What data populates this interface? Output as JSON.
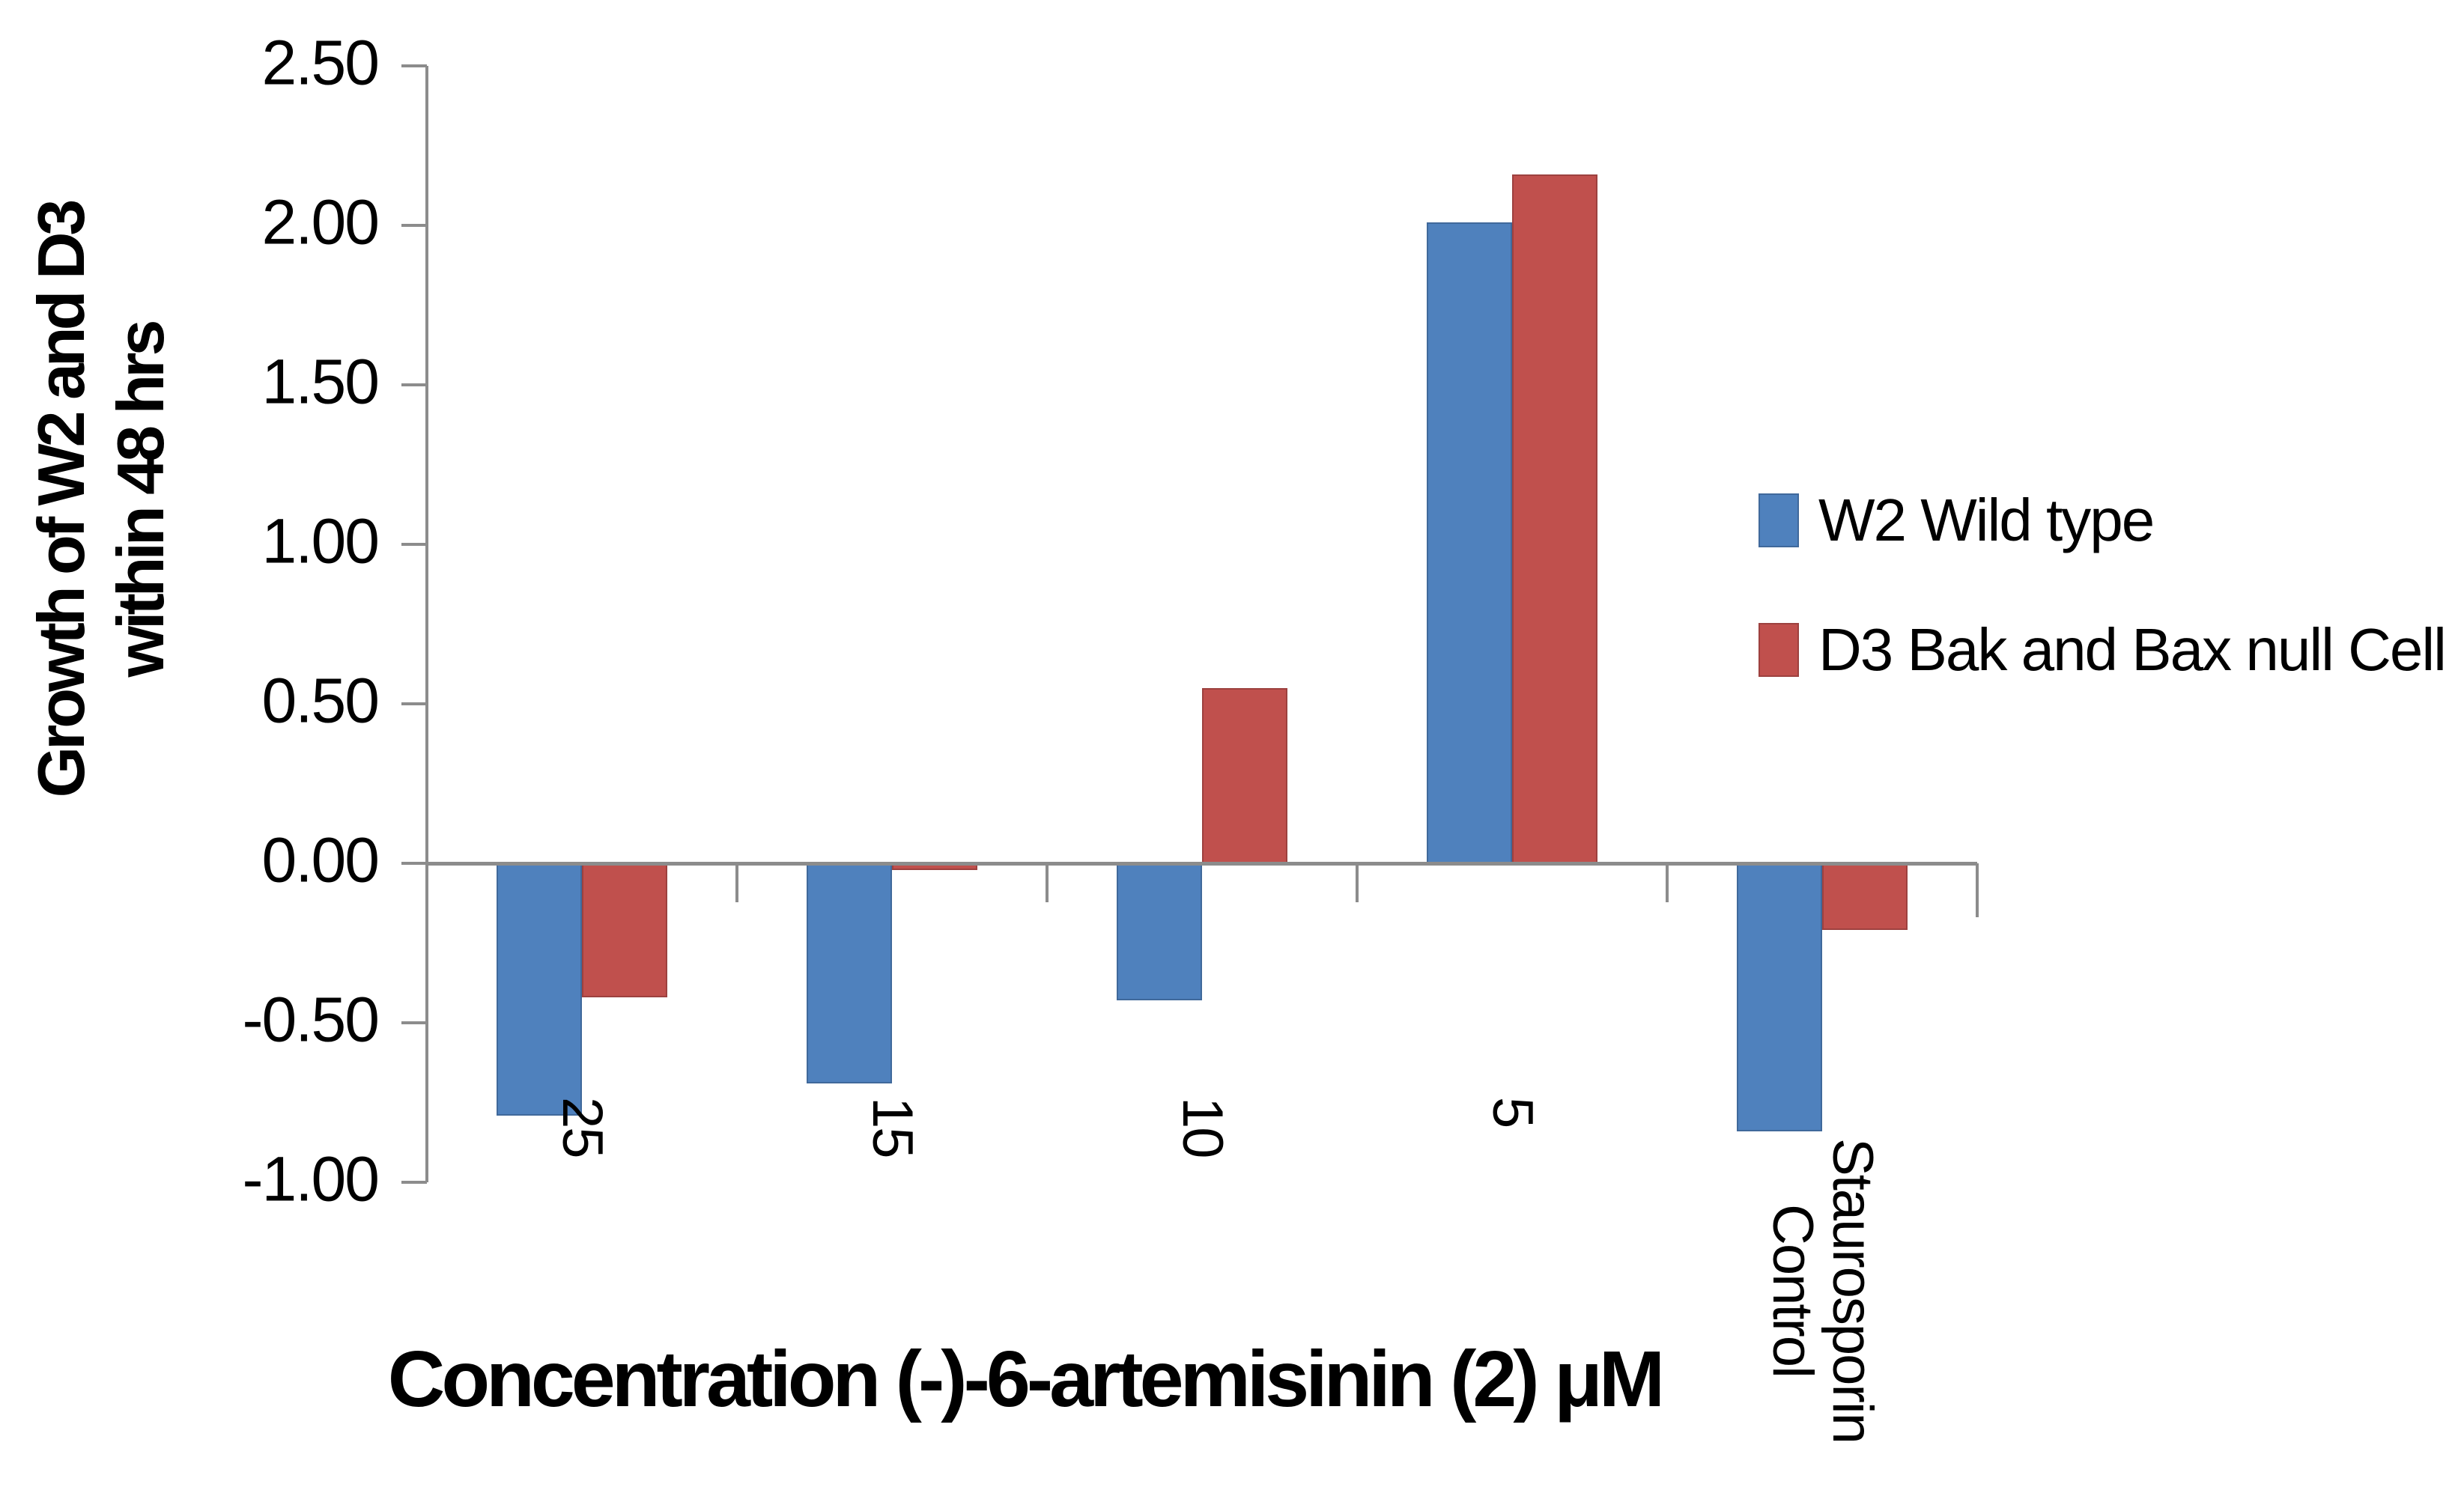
{
  "chart_data": {
    "type": "bar",
    "title": "",
    "categories": [
      "25",
      "15",
      "10",
      "5",
      "Staurosporin Control"
    ],
    "category_label_lines": [
      [
        "25"
      ],
      [
        "15"
      ],
      [
        "10"
      ],
      [
        "5"
      ],
      [
        "Staurosporin",
        "Control"
      ]
    ],
    "series": [
      {
        "name": "W2 Wild type",
        "color": "#4F81BD",
        "values": [
          -0.79,
          -0.69,
          -0.43,
          2.01,
          -0.84
        ]
      },
      {
        "name": "D3 Bak and Bax null Cell",
        "color": "#C0504D",
        "values": [
          -0.42,
          -0.02,
          0.55,
          2.16,
          -0.21
        ]
      }
    ],
    "xlabel": "Concentration (-)-6-artemisinin (2) μM",
    "ylabel_lines": [
      "Growth of W2 and D3",
      "within  48 hrs"
    ],
    "ylim": [
      -1.0,
      2.5
    ],
    "ytick_step": 0.5,
    "ytick_labels": [
      "2.50",
      "2.00",
      "1.50",
      "1.00",
      "0.50",
      "0.00",
      "-0.50",
      "-1.00"
    ],
    "grid": false,
    "legend_position": "right",
    "axis_color": "#8C8C8C",
    "text_color": "#000000",
    "background_color": "#FFFFFF"
  }
}
